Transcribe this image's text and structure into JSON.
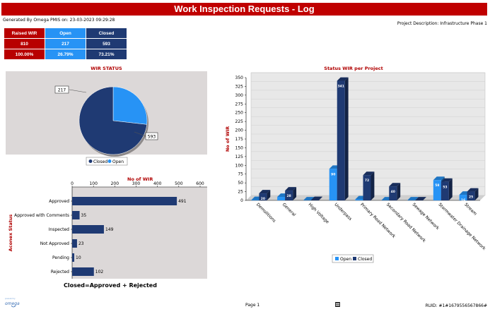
{
  "header": {
    "title": "Work Inspection Requests - Log",
    "generated": "Generated By Omega PMIS on: 23-03-2023 09:29:28",
    "project": "Project Description: Infrastructure Phase 1"
  },
  "summary": {
    "headers": [
      "Raised WIR",
      "Open",
      "Closed"
    ],
    "counts": [
      "810",
      "217",
      "593"
    ],
    "percents": [
      "100.00%",
      "26.79%",
      "73.21%"
    ]
  },
  "colors": {
    "open": "#2793f5",
    "closed": "#1f3a73",
    "accent": "#c00000",
    "panel": "#dcd8d8"
  },
  "chart_data": [
    {
      "type": "pie",
      "title": "WIR STATUS",
      "slices": [
        {
          "name": "Closed",
          "value": 593
        },
        {
          "name": "Open",
          "value": 217
        }
      ],
      "labels": [
        "217",
        "593"
      ],
      "legend": [
        "Closed",
        "Open"
      ],
      "legend_position": "bottom"
    },
    {
      "type": "bar",
      "orientation": "horizontal",
      "title": "",
      "xlabel": "No of WIR",
      "ylabel": "Aconex Status",
      "categories": [
        "Approved",
        "Approved with Comments",
        "Inspected",
        "Not Approved",
        "Pending",
        "Rejected"
      ],
      "values": [
        491,
        35,
        149,
        23,
        10,
        102
      ],
      "xlim": [
        0,
        600
      ],
      "xticks": [
        "0",
        "100",
        "200",
        "300",
        "400",
        "500",
        "600"
      ],
      "caption": "Closed=Approved + Rejected",
      "grid": false
    },
    {
      "type": "bar",
      "title": "Status WIR per Project",
      "xlabel": "",
      "ylabel": "No of WIR",
      "categories": [
        "Demolitions",
        "General",
        "High Voltage",
        "Underpass",
        "Primary Road Network",
        "Secondary Road Network",
        "Sewage Network",
        "Stormwater Drainage Network",
        "Stream"
      ],
      "series": [
        {
          "name": "Open",
          "values": [
            1,
            10,
            0,
            90,
            3,
            0,
            0,
            58,
            16
          ]
        },
        {
          "name": "Closed",
          "values": [
            20,
            28,
            1,
            341,
            72,
            40,
            0,
            53,
            25
          ]
        }
      ],
      "labels_open": [
        "",
        "10",
        "",
        "90",
        "",
        "",
        "",
        "58",
        "16"
      ],
      "labels_closed": [
        "20",
        "28",
        "",
        "341",
        "72",
        "40",
        "",
        "53",
        "25"
      ],
      "ylim": [
        0,
        350
      ],
      "yticks": [
        "0",
        "25",
        "50",
        "75",
        "100",
        "125",
        "150",
        "175",
        "200",
        "225",
        "250",
        "275",
        "300",
        "325",
        "350"
      ],
      "legend": [
        "Open",
        "Closed"
      ],
      "legend_position": "bottom",
      "grid": true
    }
  ],
  "footer": {
    "page": "Page 1",
    "ruid": "RUID: #1#1679556567866#"
  }
}
